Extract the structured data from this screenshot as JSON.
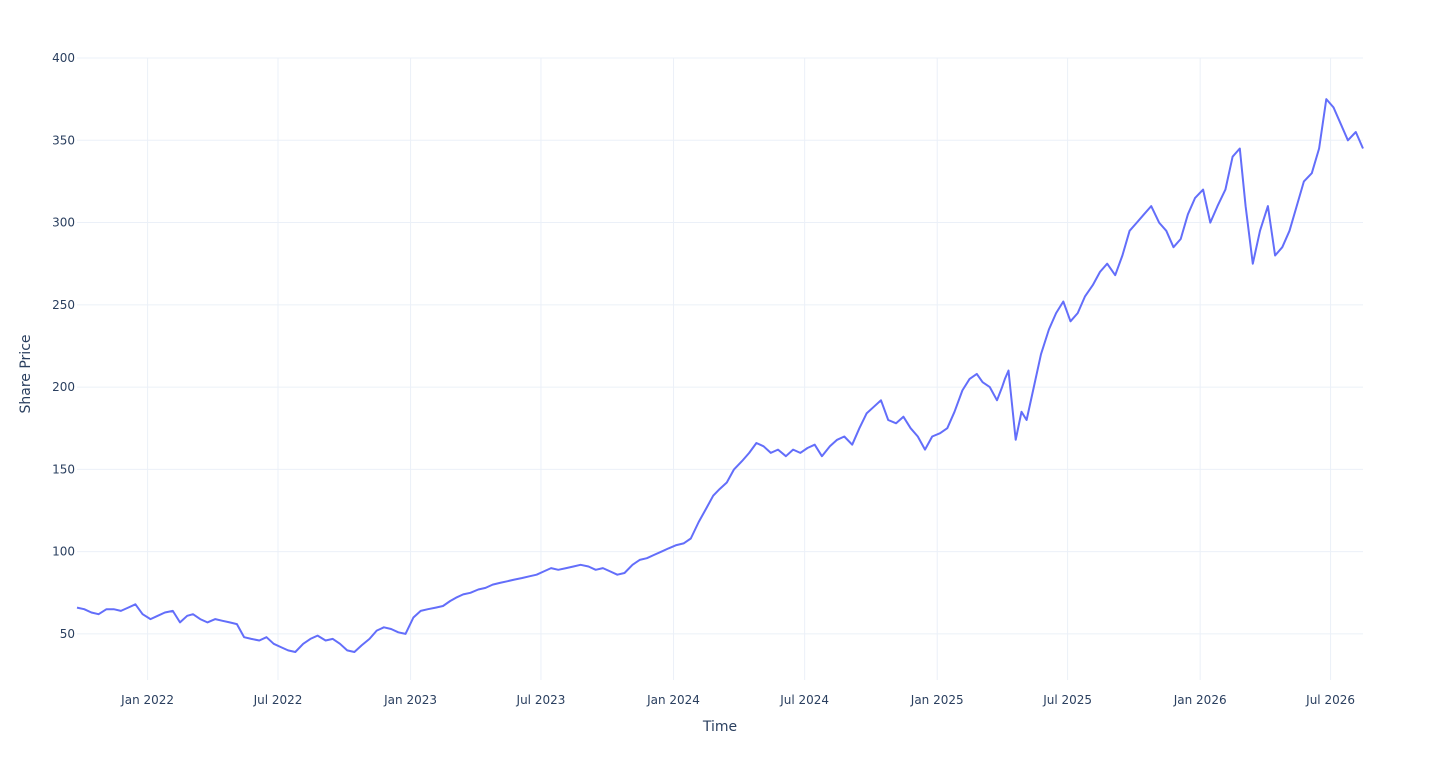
{
  "chart_data": {
    "type": "line",
    "title": "",
    "xlabel": "Time",
    "ylabel": "Share Price",
    "x_range": [
      "2021-09-25",
      "2026-08-15"
    ],
    "ylim": [
      22,
      400
    ],
    "x_ticks": [
      {
        "date": "2022-01-01",
        "label": "Jan 2022"
      },
      {
        "date": "2022-07-01",
        "label": "Jul 2022"
      },
      {
        "date": "2023-01-01",
        "label": "Jan 2023"
      },
      {
        "date": "2023-07-01",
        "label": "Jul 2023"
      },
      {
        "date": "2024-01-01",
        "label": "Jan 2024"
      },
      {
        "date": "2024-07-01",
        "label": "Jul 2024"
      },
      {
        "date": "2025-01-01",
        "label": "Jan 2025"
      },
      {
        "date": "2025-07-01",
        "label": "Jul 2025"
      },
      {
        "date": "2026-01-01",
        "label": "Jan 2026"
      },
      {
        "date": "2026-07-01",
        "label": "Jul 2026"
      }
    ],
    "y_ticks": [
      50,
      100,
      150,
      200,
      250,
      300,
      350,
      400
    ],
    "grid": true,
    "line_color": "#636efa",
    "series": [
      {
        "x": [
          "2021-09-25",
          "2021-10-05",
          "2021-10-15",
          "2021-10-25",
          "2021-11-05",
          "2021-11-15",
          "2021-11-25",
          "2021-12-05",
          "2021-12-15",
          "2021-12-25",
          "2022-01-05",
          "2022-01-15",
          "2022-01-25",
          "2022-02-05",
          "2022-02-15",
          "2022-02-25",
          "2022-03-05",
          "2022-03-15",
          "2022-03-25",
          "2022-04-05",
          "2022-04-15",
          "2022-04-25",
          "2022-05-05",
          "2022-05-15",
          "2022-05-25",
          "2022-06-05",
          "2022-06-15",
          "2022-06-25",
          "2022-07-05",
          "2022-07-15",
          "2022-07-25",
          "2022-08-05",
          "2022-08-15",
          "2022-08-25",
          "2022-09-05",
          "2022-09-15",
          "2022-09-25",
          "2022-10-05",
          "2022-10-15",
          "2022-10-25",
          "2022-11-05",
          "2022-11-15",
          "2022-11-25",
          "2022-12-05",
          "2022-12-15",
          "2022-12-25",
          "2023-01-05",
          "2023-01-15",
          "2023-01-25",
          "2023-02-05",
          "2023-02-15",
          "2023-02-25",
          "2023-03-05",
          "2023-03-15",
          "2023-03-25",
          "2023-04-05",
          "2023-04-15",
          "2023-04-25",
          "2023-05-05",
          "2023-05-15",
          "2023-05-25",
          "2023-06-05",
          "2023-06-15",
          "2023-06-25",
          "2023-07-05",
          "2023-07-15",
          "2023-07-25",
          "2023-08-05",
          "2023-08-15",
          "2023-08-25",
          "2023-09-05",
          "2023-09-15",
          "2023-09-25",
          "2023-10-05",
          "2023-10-15",
          "2023-10-25",
          "2023-11-05",
          "2023-11-15",
          "2023-11-25",
          "2023-12-05",
          "2023-12-15",
          "2023-12-25",
          "2024-01-05",
          "2024-01-15",
          "2024-01-25",
          "2024-02-05",
          "2024-02-15",
          "2024-02-25",
          "2024-03-05",
          "2024-03-15",
          "2024-03-25",
          "2024-04-05",
          "2024-04-15",
          "2024-04-25",
          "2024-05-05",
          "2024-05-15",
          "2024-05-25",
          "2024-06-05",
          "2024-06-15",
          "2024-06-25",
          "2024-07-05",
          "2024-07-15",
          "2024-07-25",
          "2024-08-05",
          "2024-08-15",
          "2024-08-25",
          "2024-09-05",
          "2024-09-15",
          "2024-09-25",
          "2024-10-05",
          "2024-10-15",
          "2024-10-25",
          "2024-11-05",
          "2024-11-15",
          "2024-11-25",
          "2024-12-05",
          "2024-12-15",
          "2024-12-25",
          "2025-01-05",
          "2025-01-15",
          "2025-01-25",
          "2025-02-05",
          "2025-02-15",
          "2025-02-25",
          "2025-03-05",
          "2025-03-15",
          "2025-03-25",
          "2025-04-01",
          "2025-04-05",
          "2025-04-10",
          "2025-04-20",
          "2025-04-28",
          "2025-05-05",
          "2025-05-15",
          "2025-05-25",
          "2025-06-05",
          "2025-06-15",
          "2025-06-25",
          "2025-07-05",
          "2025-07-15",
          "2025-07-25",
          "2025-08-05",
          "2025-08-15",
          "2025-08-25",
          "2025-09-05",
          "2025-09-15",
          "2025-09-25",
          "2025-10-05",
          "2025-10-15",
          "2025-10-25",
          "2025-11-05",
          "2025-11-15",
          "2025-11-25",
          "2025-12-05",
          "2025-12-15",
          "2025-12-25",
          "2026-01-05",
          "2026-01-15",
          "2026-01-25",
          "2026-02-05",
          "2026-02-15",
          "2026-02-25",
          "2026-03-05",
          "2026-03-15",
          "2026-03-25",
          "2026-04-05",
          "2026-04-15",
          "2026-04-25",
          "2026-05-05",
          "2026-05-15",
          "2026-05-25",
          "2026-06-05",
          "2026-06-15",
          "2026-06-25",
          "2026-07-05",
          "2026-07-15",
          "2026-07-25",
          "2026-08-05",
          "2026-08-15"
        ],
        "y": [
          66,
          65,
          63,
          62,
          65,
          65,
          64,
          66,
          68,
          62,
          59,
          61,
          63,
          64,
          57,
          61,
          62,
          59,
          57,
          59,
          58,
          57,
          56,
          48,
          47,
          46,
          48,
          44,
          42,
          40,
          39,
          44,
          47,
          49,
          46,
          47,
          44,
          40,
          39,
          43,
          47,
          52,
          54,
          53,
          51,
          50,
          60,
          64,
          65,
          66,
          67,
          70,
          72,
          74,
          75,
          77,
          78,
          80,
          81,
          82,
          83,
          84,
          85,
          86,
          88,
          90,
          89,
          90,
          91,
          92,
          91,
          89,
          90,
          88,
          86,
          87,
          92,
          95,
          96,
          98,
          100,
          102,
          104,
          105,
          108,
          118,
          126,
          134,
          138,
          142,
          150,
          155,
          160,
          166,
          164,
          160,
          162,
          158,
          162,
          160,
          163,
          165,
          158,
          164,
          168,
          170,
          165,
          175,
          184,
          188,
          192,
          180,
          178,
          182,
          175,
          170,
          162,
          170,
          172,
          175,
          185,
          198,
          205,
          208,
          203,
          200,
          192,
          200,
          205,
          210,
          168,
          185,
          180,
          200,
          220,
          235,
          245,
          252,
          240,
          245,
          255,
          262,
          270,
          275,
          268,
          280,
          295,
          300,
          305,
          310,
          300,
          295,
          285,
          290,
          305,
          315,
          320,
          300,
          310,
          320,
          340,
          345,
          310,
          275,
          295,
          310,
          280,
          285,
          295,
          310,
          325,
          330,
          345,
          375,
          370,
          360,
          350,
          355,
          345
        ],
        "values_note": ""
      }
    ]
  }
}
